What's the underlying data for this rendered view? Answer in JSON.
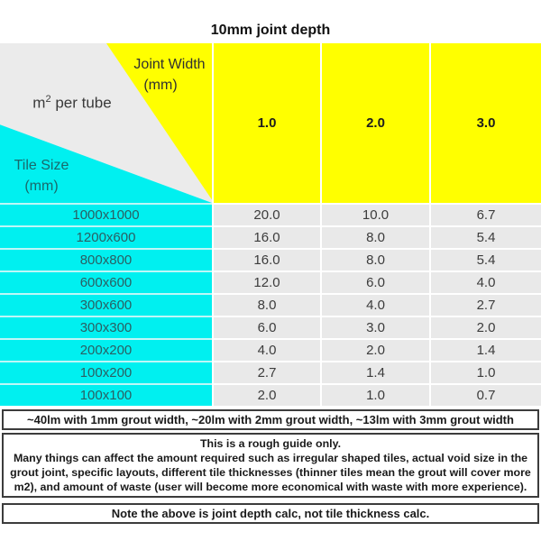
{
  "title": "10mm joint depth",
  "header": {
    "corner": {
      "joint_width_line1": "Joint Width",
      "joint_width_line2": "(mm)",
      "m2_prefix": "m",
      "m2_sup": "2",
      "m2_suffix": " per tube",
      "tile_size_line1": "Tile Size",
      "tile_size_line2": "(mm)"
    },
    "columns": [
      "1.0",
      "2.0",
      "3.0"
    ]
  },
  "table": {
    "rows": [
      {
        "tile": "1000x1000",
        "values": [
          "20.0",
          "10.0",
          "6.7"
        ]
      },
      {
        "tile": "1200x600",
        "values": [
          "16.0",
          "8.0",
          "5.4"
        ]
      },
      {
        "tile": "800x800",
        "values": [
          "16.0",
          "8.0",
          "5.4"
        ]
      },
      {
        "tile": "600x600",
        "values": [
          "12.0",
          "6.0",
          "4.0"
        ]
      },
      {
        "tile": "300x600",
        "values": [
          "8.0",
          "4.0",
          "2.7"
        ]
      },
      {
        "tile": "300x300",
        "values": [
          "6.0",
          "3.0",
          "2.0"
        ]
      },
      {
        "tile": "200x200",
        "values": [
          "4.0",
          "2.0",
          "1.4"
        ]
      },
      {
        "tile": "100x200",
        "values": [
          "2.7",
          "1.4",
          "1.0"
        ]
      },
      {
        "tile": "100x100",
        "values": [
          "2.0",
          "1.0",
          "0.7"
        ]
      }
    ]
  },
  "notes": {
    "lm_note": "~40lm with 1mm grout width, ~20lm with 2mm grout width, ~13lm with 3mm grout width",
    "guide_line1": "This is a rough guide only.",
    "guide_body": "Many things can affect the amount required such as irregular shaped tiles, actual void size in the grout joint, specific layouts, different tile thicknesses (thinner tiles mean the grout will cover more m2), and amount of waste (user will become more economical with waste with more experience).",
    "depth_note": "Note the above is joint depth calc, not tile thickness calc."
  },
  "colors": {
    "header_yellow": "#ffff00",
    "tile_cyan": "#00f0f0",
    "corner_gray": "#ebebeb",
    "cell_gray": "#e9e9e9"
  },
  "chart_data": {
    "type": "table",
    "title": "10mm joint depth",
    "column_header": "Joint Width (mm)",
    "row_header": "Tile Size (mm)",
    "unit": "m2 per tube",
    "columns": [
      1.0,
      2.0,
      3.0
    ],
    "rows": [
      {
        "tile_size": "1000x1000",
        "values": [
          20.0,
          10.0,
          6.7
        ]
      },
      {
        "tile_size": "1200x600",
        "values": [
          16.0,
          8.0,
          5.4
        ]
      },
      {
        "tile_size": "800x800",
        "values": [
          16.0,
          8.0,
          5.4
        ]
      },
      {
        "tile_size": "600x600",
        "values": [
          12.0,
          6.0,
          4.0
        ]
      },
      {
        "tile_size": "300x600",
        "values": [
          8.0,
          4.0,
          2.7
        ]
      },
      {
        "tile_size": "300x300",
        "values": [
          6.0,
          3.0,
          2.0
        ]
      },
      {
        "tile_size": "200x200",
        "values": [
          4.0,
          2.0,
          1.4
        ]
      },
      {
        "tile_size": "100x200",
        "values": [
          2.7,
          1.4,
          1.0
        ]
      },
      {
        "tile_size": "100x100",
        "values": [
          2.0,
          1.0,
          0.7
        ]
      }
    ],
    "annotations": [
      "~40lm with 1mm grout width, ~20lm with 2mm grout width, ~13lm with 3mm grout width",
      "This is a rough guide only.",
      "Many things can affect the amount required such as irregular shaped tiles, actual void size in the grout joint, specific layouts, different tile thicknesses (thinner tiles mean the grout will cover more m2), and amount of waste (user will become more economical with waste with more experience).",
      "Note the above is joint depth calc, not tile thickness calc."
    ]
  }
}
